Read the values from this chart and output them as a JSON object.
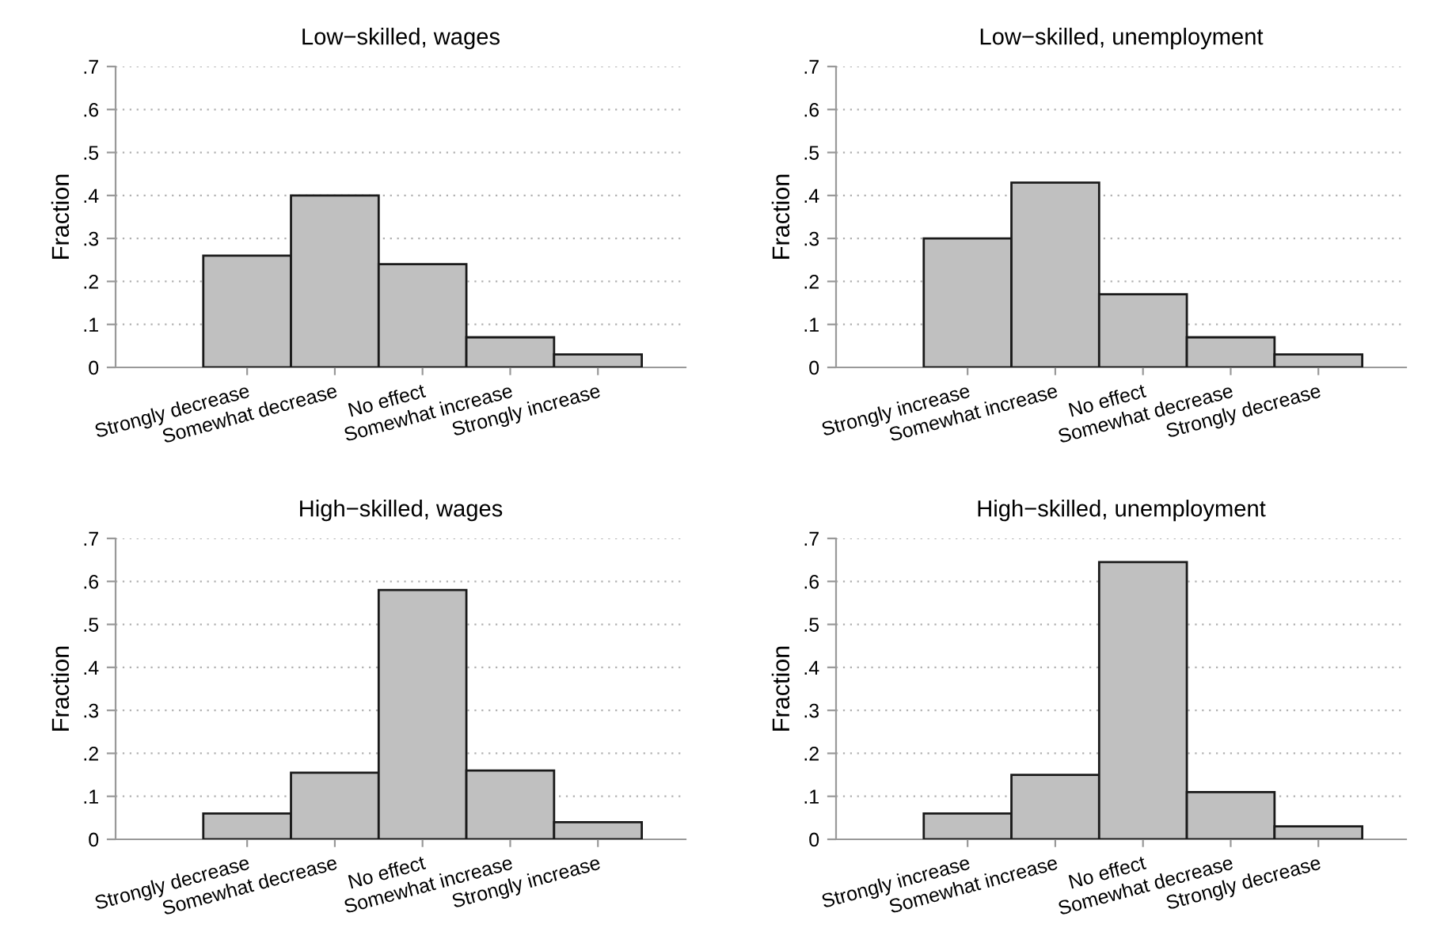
{
  "chart_data": [
    {
      "type": "bar",
      "title": "Low−skilled, wages",
      "ylabel": "Fraction",
      "categories": [
        "Strongly decrease",
        "Somewhat decrease",
        "No effect",
        "Somewhat increase",
        "Strongly increase"
      ],
      "values": [
        0.26,
        0.4,
        0.24,
        0.07,
        0.03
      ],
      "color": "#c0c0c0",
      "ylim": [
        0,
        0.7
      ],
      "yticks": [
        {
          "value": 0,
          "label": "0"
        },
        {
          "value": 0.1,
          "label": ".1"
        },
        {
          "value": 0.2,
          "label": ".2"
        },
        {
          "value": 0.3,
          "label": ".3"
        },
        {
          "value": 0.4,
          "label": ".4"
        },
        {
          "value": 0.5,
          "label": ".5"
        },
        {
          "value": 0.6,
          "label": ".6"
        },
        {
          "value": 0.7,
          "label": ".7"
        }
      ],
      "grid": "y"
    },
    {
      "type": "bar",
      "title": "Low−skilled, unemployment",
      "ylabel": "Fraction",
      "categories": [
        "Strongly increase",
        "Somewhat increase",
        "No effect",
        "Somewhat decrease",
        "Strongly decrease"
      ],
      "values": [
        0.3,
        0.43,
        0.17,
        0.07,
        0.03
      ],
      "color": "#c0c0c0",
      "ylim": [
        0,
        0.7
      ],
      "yticks": [
        {
          "value": 0,
          "label": "0"
        },
        {
          "value": 0.1,
          "label": ".1"
        },
        {
          "value": 0.2,
          "label": ".2"
        },
        {
          "value": 0.3,
          "label": ".3"
        },
        {
          "value": 0.4,
          "label": ".4"
        },
        {
          "value": 0.5,
          "label": ".5"
        },
        {
          "value": 0.6,
          "label": ".6"
        },
        {
          "value": 0.7,
          "label": ".7"
        }
      ],
      "grid": "y"
    },
    {
      "type": "bar",
      "title": "High−skilled, wages",
      "ylabel": "Fraction",
      "categories": [
        "Strongly decrease",
        "Somewhat decrease",
        "No effect",
        "Somewhat increase",
        "Strongly increase"
      ],
      "values": [
        0.06,
        0.155,
        0.58,
        0.16,
        0.04
      ],
      "color": "#c0c0c0",
      "ylim": [
        0,
        0.7
      ],
      "yticks": [
        {
          "value": 0,
          "label": "0"
        },
        {
          "value": 0.1,
          "label": ".1"
        },
        {
          "value": 0.2,
          "label": ".2"
        },
        {
          "value": 0.3,
          "label": ".3"
        },
        {
          "value": 0.4,
          "label": ".4"
        },
        {
          "value": 0.5,
          "label": ".5"
        },
        {
          "value": 0.6,
          "label": ".6"
        },
        {
          "value": 0.7,
          "label": ".7"
        }
      ],
      "grid": "y"
    },
    {
      "type": "bar",
      "title": "High−skilled, unemployment",
      "ylabel": "Fraction",
      "categories": [
        "Strongly increase",
        "Somewhat increase",
        "No effect",
        "Somewhat decrease",
        "Strongly decrease"
      ],
      "values": [
        0.06,
        0.15,
        0.645,
        0.11,
        0.03
      ],
      "color": "#c0c0c0",
      "ylim": [
        0,
        0.7
      ],
      "yticks": [
        {
          "value": 0,
          "label": "0"
        },
        {
          "value": 0.1,
          "label": ".1"
        },
        {
          "value": 0.2,
          "label": ".2"
        },
        {
          "value": 0.3,
          "label": ".3"
        },
        {
          "value": 0.4,
          "label": ".4"
        },
        {
          "value": 0.5,
          "label": ".5"
        },
        {
          "value": 0.6,
          "label": ".6"
        },
        {
          "value": 0.7,
          "label": ".7"
        }
      ],
      "grid": "y"
    }
  ]
}
